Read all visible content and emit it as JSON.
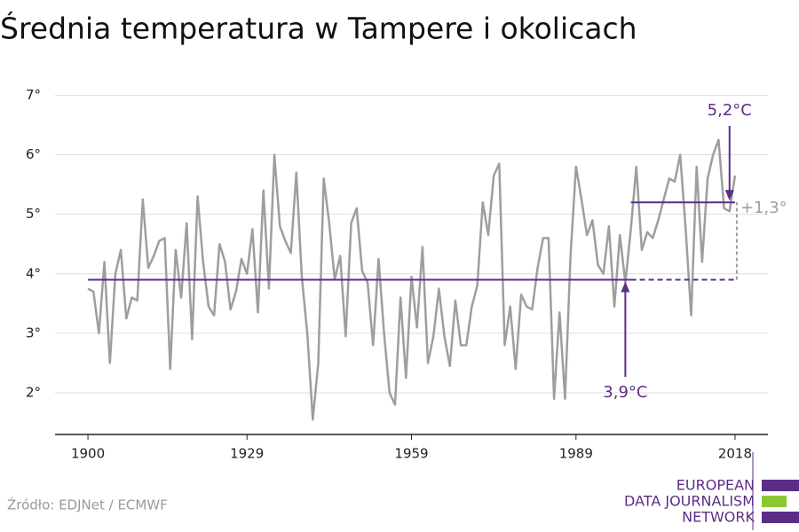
{
  "chart_data": {
    "type": "line",
    "title": "Średnia temperatura w Tampere i okolicach",
    "x": [
      1900,
      1901,
      1902,
      1903,
      1904,
      1905,
      1906,
      1907,
      1908,
      1909,
      1910,
      1911,
      1912,
      1913,
      1914,
      1915,
      1916,
      1917,
      1918,
      1919,
      1920,
      1921,
      1922,
      1923,
      1924,
      1925,
      1926,
      1927,
      1928,
      1929,
      1930,
      1931,
      1932,
      1933,
      1934,
      1935,
      1936,
      1937,
      1938,
      1939,
      1940,
      1941,
      1942,
      1943,
      1944,
      1945,
      1946,
      1947,
      1948,
      1949,
      1950,
      1951,
      1952,
      1953,
      1954,
      1955,
      1956,
      1957,
      1958,
      1959,
      1960,
      1961,
      1962,
      1963,
      1964,
      1965,
      1966,
      1967,
      1968,
      1969,
      1970,
      1971,
      1972,
      1973,
      1974,
      1975,
      1976,
      1977,
      1978,
      1979,
      1980,
      1981,
      1982,
      1983,
      1984,
      1985,
      1986,
      1987,
      1988,
      1989,
      1990,
      1991,
      1992,
      1993,
      1994,
      1995,
      1996,
      1997,
      1998,
      1999,
      2000,
      2001,
      2002,
      2003,
      2004,
      2005,
      2006,
      2007,
      2008,
      2009,
      2010,
      2011,
      2012,
      2013,
      2014,
      2015,
      2016,
      2017,
      2018
    ],
    "series": [
      {
        "color": "#9e9e9e",
        "values": [
          3.75,
          3.7,
          3.0,
          4.2,
          2.5,
          4.0,
          4.4,
          3.25,
          3.6,
          3.55,
          5.25,
          4.1,
          4.3,
          4.55,
          4.6,
          2.4,
          4.4,
          3.6,
          4.85,
          2.9,
          5.3,
          4.2,
          3.45,
          3.3,
          4.5,
          4.2,
          3.4,
          3.7,
          4.25,
          4.0,
          4.75,
          3.35,
          5.4,
          3.75,
          6.0,
          4.8,
          4.55,
          4.35,
          5.7,
          3.95,
          3.0,
          1.55,
          2.5,
          5.6,
          4.85,
          3.9,
          4.3,
          2.95,
          4.85,
          5.1,
          4.05,
          3.85,
          2.8,
          4.25,
          3.0,
          2.0,
          1.8,
          3.6,
          2.25,
          3.95,
          3.1,
          4.45,
          2.5,
          2.95,
          3.75,
          2.95,
          2.45,
          3.55,
          2.8,
          2.8,
          3.45,
          3.8,
          5.2,
          4.65,
          5.65,
          5.85,
          2.8,
          3.45,
          2.4,
          3.65,
          3.45,
          3.4,
          4.1,
          4.6,
          4.6,
          1.9,
          3.35,
          1.9,
          4.3,
          5.8,
          5.25,
          4.65,
          4.9,
          4.15,
          4.0,
          4.8,
          3.45,
          4.65,
          3.85,
          4.75,
          5.8,
          4.4,
          4.7,
          4.6,
          4.9,
          5.25,
          5.6,
          5.55,
          6.0,
          4.75,
          3.3,
          5.8,
          4.2,
          5.6,
          6.0,
          6.25,
          5.1,
          5.05,
          5.65
        ]
      }
    ],
    "xlim": [
      1894,
      2024
    ],
    "xticks": [
      1900,
      1929,
      1959,
      1989,
      2018
    ],
    "ylim": [
      1.3,
      7.2
    ],
    "yticks": [
      {
        "value": 2,
        "label": "2°"
      },
      {
        "value": 3,
        "label": "3°"
      },
      {
        "value": 4,
        "label": "4°"
      },
      {
        "value": 5,
        "label": "5°"
      },
      {
        "value": 6,
        "label": "6°"
      },
      {
        "value": 7,
        "label": "7°"
      }
    ],
    "grid": true,
    "reference_lines": [
      {
        "value": 3.9,
        "label": "3,9°C",
        "start": 1900,
        "end": 2018,
        "dashed_from": 1999,
        "color": "#5c2d87"
      },
      {
        "value": 5.2,
        "label": "5,2°C",
        "start": 1999,
        "end": 2018,
        "color": "#5c2d87"
      }
    ],
    "difference": {
      "value": 1.3,
      "label": "+1,3°",
      "color": "#9e9e9e"
    },
    "source": "Źródło: EDJNet / ECMWF",
    "logo": [
      "EUROPEAN",
      "DATA JOURNALISM",
      "NETWORK"
    ]
  }
}
